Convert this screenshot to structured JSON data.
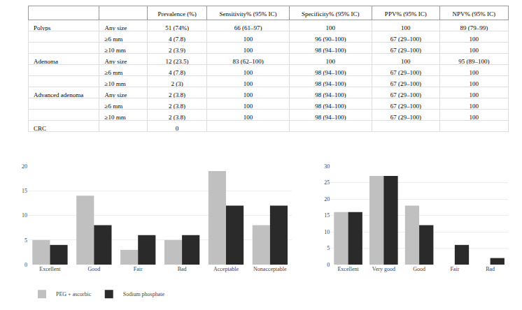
{
  "chart_data": [
    {
      "type": "table",
      "columns": [
        null,
        null,
        "Prevalence (%)",
        "Sensitivity% (95% IC)",
        "Specificity% (95% IC)",
        "PPV% (95% IC)",
        "NPV% (95% IC)"
      ],
      "rows": [
        [
          "Polyps",
          "Any size",
          "51 (74%)",
          "66 (61–97)",
          "100",
          "100",
          "89 (79–99)"
        ],
        [
          null,
          "≥6 mm",
          "4 (7.8)",
          "100",
          "96 (90–100)",
          "67 (29–100)",
          "100"
        ],
        [
          null,
          "≥10 mm",
          "2 (3.9)",
          "100",
          "98 (94–100)",
          "67 (29–100)",
          "100"
        ],
        [
          "Adenoma",
          "Any size",
          "12 (23.5)",
          "83 (62–100)",
          "100",
          "100",
          "95 (89–100)"
        ],
        [
          null,
          "≥6 mm",
          "4 (7.8)",
          "100",
          "98 (94–100)",
          "67 (29–100)",
          "100"
        ],
        [
          null,
          "≥10 mm",
          "2 (3)",
          "100",
          "98 (94–100)",
          "67 (29–100)",
          "100"
        ],
        [
          "Advanced adenoma",
          "Any size",
          "2 (3.8)",
          "100",
          "98 (94–100)",
          "67 (29–100)",
          "100"
        ],
        [
          null,
          "≥6 mm",
          "2 (3.8)",
          "100",
          "98 (94–100)",
          "67 (29–100)",
          "100"
        ],
        [
          null,
          "≥10 mm",
          "2 (3.8)",
          "100",
          "98 (94–100)",
          "67 (29–100)",
          "100"
        ],
        [
          "CRC",
          null,
          "0",
          null,
          null,
          null,
          null
        ]
      ]
    },
    {
      "type": "bar",
      "categories": [
        "Excellent",
        "Good",
        "Fair",
        "Bad",
        "Acceptable",
        "Nonacceptable"
      ],
      "series": [
        {
          "name": "PEG + ascorbic",
          "color": "#c0c0c0",
          "values": [
            5,
            14,
            3,
            5,
            19,
            8
          ]
        },
        {
          "name": "Sodium phosphate",
          "color": "#2a2a2a",
          "values": [
            4,
            8,
            6,
            6,
            12,
            12
          ]
        }
      ],
      "ylim": [
        0,
        20
      ],
      "yticks": [
        0,
        5,
        10,
        15,
        20
      ],
      "grid": true,
      "legend": "lower left"
    },
    {
      "type": "bar",
      "categories": [
        "Excellent",
        "Very good",
        "Good",
        "Fair",
        "Bad"
      ],
      "series": [
        {
          "name": "PEG + ascorbic",
          "color": "#c0c0c0",
          "values": [
            16,
            27,
            18,
            0,
            0
          ]
        },
        {
          "name": "Sodium phosphate",
          "color": "#2a2a2a",
          "values": [
            16,
            27,
            12,
            6,
            2
          ]
        }
      ],
      "ylim": [
        0,
        30
      ],
      "yticks": [
        0,
        5,
        10,
        15,
        20,
        25,
        30
      ],
      "grid": true
    }
  ]
}
